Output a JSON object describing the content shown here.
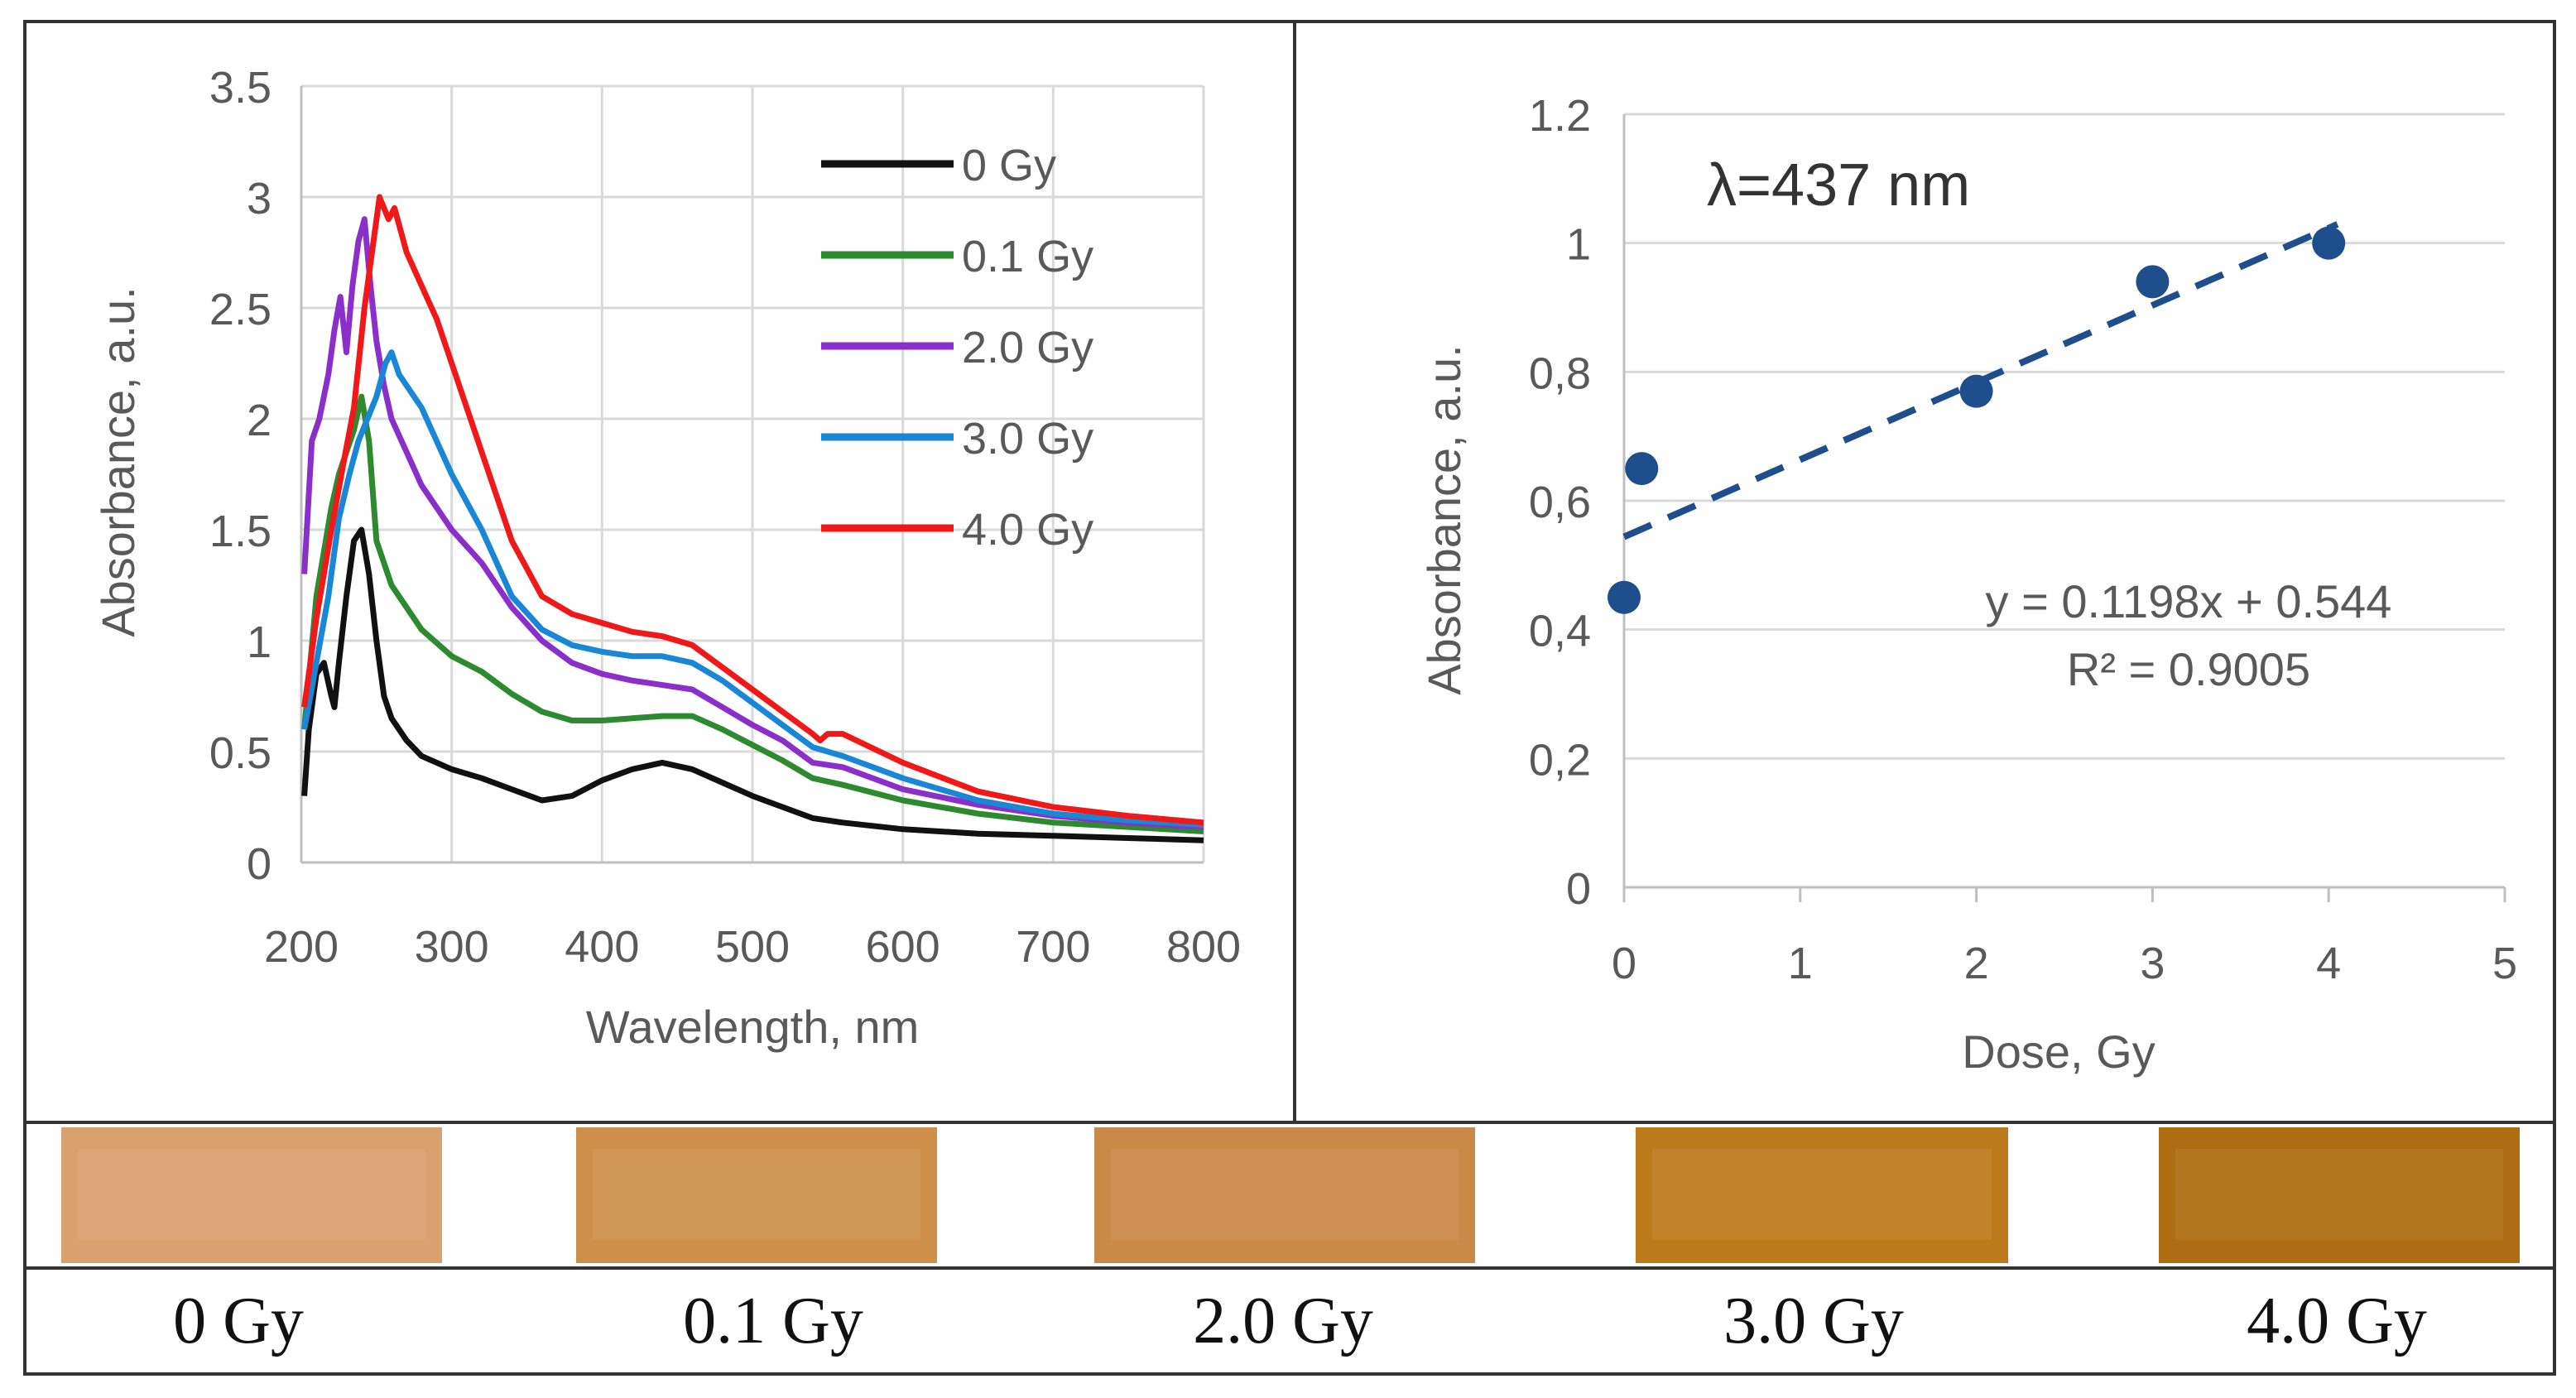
{
  "colors": {
    "line_0gy": "#111111",
    "line_01gy": "#2e8a2e",
    "line_20gy": "#8a2fc9",
    "line_30gy": "#1a86d6",
    "line_40gy": "#f01818",
    "scatter": "#1f4e8c",
    "gridline": "#d9d9d9",
    "axis": "#bfbfbf",
    "text": "#595959"
  },
  "chart_data": [
    {
      "type": "line",
      "title": "",
      "xlabel": "Wavelength, nm",
      "ylabel": "Absorbance, a.u.",
      "xlim": [
        200,
        800
      ],
      "ylim": [
        0,
        3.5
      ],
      "xticks": [
        "200",
        "300",
        "400",
        "500",
        "600",
        "700",
        "800"
      ],
      "yticks": [
        "0",
        "0.5",
        "1",
        "1.5",
        "2",
        "2.5",
        "3",
        "3.5"
      ],
      "grid": true,
      "legend": "top-right",
      "series": [
        {
          "name": "0 Gy",
          "color": "#111111",
          "x": [
            202,
            205,
            210,
            215,
            220,
            222,
            225,
            230,
            235,
            240,
            245,
            250,
            255,
            260,
            270,
            280,
            300,
            320,
            340,
            360,
            380,
            400,
            420,
            440,
            460,
            480,
            500,
            520,
            540,
            560,
            600,
            650,
            700,
            750,
            800
          ],
          "y": [
            0.3,
            0.6,
            0.85,
            0.9,
            0.75,
            0.7,
            0.9,
            1.2,
            1.45,
            1.5,
            1.3,
            1.0,
            0.75,
            0.65,
            0.55,
            0.48,
            0.42,
            0.38,
            0.33,
            0.28,
            0.3,
            0.37,
            0.42,
            0.45,
            0.42,
            0.36,
            0.3,
            0.25,
            0.2,
            0.18,
            0.15,
            0.13,
            0.12,
            0.11,
            0.1
          ]
        },
        {
          "name": "0.1 Gy",
          "color": "#2e8a2e",
          "x": [
            202,
            210,
            220,
            225,
            230,
            235,
            240,
            245,
            250,
            260,
            280,
            300,
            320,
            340,
            360,
            380,
            400,
            420,
            440,
            460,
            480,
            500,
            520,
            540,
            560,
            600,
            650,
            700,
            750,
            800
          ],
          "y": [
            0.6,
            1.2,
            1.6,
            1.75,
            1.85,
            1.95,
            2.1,
            1.9,
            1.45,
            1.25,
            1.05,
            0.93,
            0.86,
            0.76,
            0.68,
            0.64,
            0.64,
            0.65,
            0.66,
            0.66,
            0.6,
            0.53,
            0.46,
            0.38,
            0.35,
            0.28,
            0.22,
            0.18,
            0.16,
            0.14
          ]
        },
        {
          "name": "2.0 Gy",
          "color": "#8a2fc9",
          "x": [
            202,
            207,
            212,
            218,
            222,
            226,
            230,
            234,
            238,
            242,
            246,
            250,
            255,
            260,
            270,
            280,
            300,
            320,
            340,
            360,
            380,
            400,
            420,
            440,
            460,
            480,
            500,
            520,
            540,
            560,
            600,
            650,
            700,
            750,
            800
          ],
          "y": [
            1.3,
            1.9,
            2.0,
            2.2,
            2.4,
            2.55,
            2.3,
            2.6,
            2.8,
            2.9,
            2.6,
            2.35,
            2.15,
            2.0,
            1.85,
            1.7,
            1.5,
            1.35,
            1.15,
            1.0,
            0.9,
            0.85,
            0.82,
            0.8,
            0.78,
            0.7,
            0.62,
            0.55,
            0.45,
            0.43,
            0.33,
            0.26,
            0.21,
            0.18,
            0.16
          ]
        },
        {
          "name": "3.0 Gy",
          "color": "#1a86d6",
          "x": [
            202,
            210,
            218,
            225,
            232,
            238,
            244,
            250,
            256,
            260,
            265,
            270,
            280,
            300,
            320,
            340,
            360,
            380,
            400,
            420,
            440,
            460,
            480,
            500,
            520,
            540,
            550,
            560,
            600,
            650,
            700,
            750,
            800
          ],
          "y": [
            0.6,
            0.9,
            1.2,
            1.55,
            1.75,
            1.9,
            2.0,
            2.1,
            2.25,
            2.3,
            2.2,
            2.15,
            2.05,
            1.75,
            1.5,
            1.2,
            1.05,
            0.98,
            0.95,
            0.93,
            0.93,
            0.9,
            0.82,
            0.72,
            0.62,
            0.52,
            0.5,
            0.48,
            0.38,
            0.28,
            0.22,
            0.19,
            0.17
          ]
        },
        {
          "name": "4.0 Gy",
          "color": "#f01818",
          "x": [
            202,
            210,
            220,
            228,
            235,
            242,
            248,
            252,
            255,
            258,
            262,
            266,
            270,
            280,
            290,
            300,
            320,
            340,
            360,
            380,
            400,
            420,
            440,
            460,
            480,
            500,
            520,
            540,
            545,
            550,
            560,
            600,
            650,
            700,
            750,
            800
          ],
          "y": [
            0.7,
            1.1,
            1.5,
            1.8,
            2.05,
            2.5,
            2.8,
            3.0,
            2.95,
            2.9,
            2.95,
            2.85,
            2.75,
            2.6,
            2.45,
            2.25,
            1.85,
            1.45,
            1.2,
            1.12,
            1.08,
            1.04,
            1.02,
            0.98,
            0.88,
            0.78,
            0.68,
            0.58,
            0.55,
            0.58,
            0.58,
            0.45,
            0.32,
            0.25,
            0.21,
            0.18
          ]
        }
      ]
    },
    {
      "type": "scatter",
      "title": "",
      "annotation": "λ=437 nm",
      "xlabel": "Dose, Gy",
      "ylabel": "Absorbance, a.u.",
      "xlim": [
        0,
        5
      ],
      "ylim": [
        0,
        1.2
      ],
      "xticks": [
        "0",
        "1",
        "2",
        "3",
        "4",
        "5"
      ],
      "yticks": [
        "0",
        "0,2",
        "0,4",
        "0,6",
        "0,8",
        "1",
        "1.2"
      ],
      "grid": true,
      "series": [
        {
          "name": "Absorbance",
          "x": [
            0,
            0.1,
            2,
            3,
            4
          ],
          "y": [
            0.45,
            0.65,
            0.77,
            0.94,
            1.0
          ]
        }
      ],
      "trendline": {
        "slope": 0.1198,
        "intercept": 0.544,
        "style": "dashed",
        "equation": "y = 0.1198x + 0.544",
        "r_squared": "R² = 0.9005"
      }
    }
  ],
  "samples": {
    "labels": [
      "0 Gy",
      "0.1 Gy",
      "2.0 Gy",
      "3.0 Gy",
      "4.0 Gy"
    ],
    "colors": [
      "#d9a070",
      "#cd8f4a",
      "#c98a48",
      "#bd7a1c",
      "#b06e14"
    ]
  }
}
